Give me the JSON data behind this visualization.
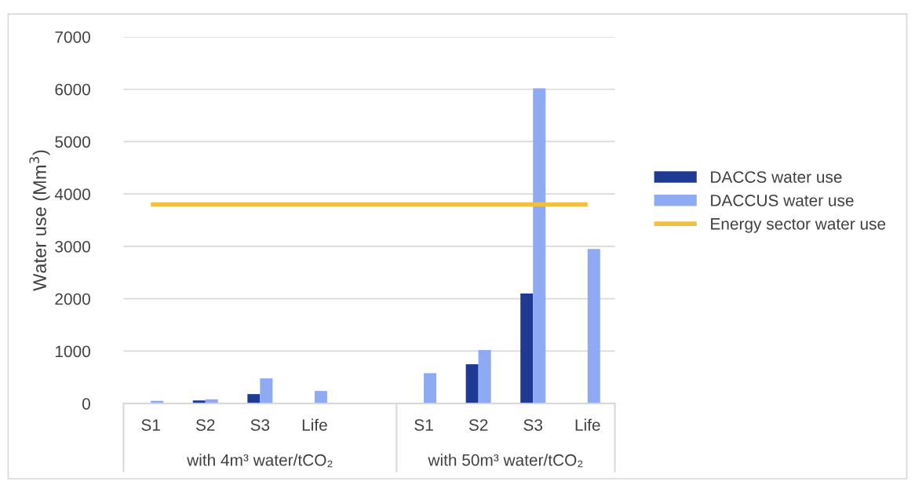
{
  "chart_data": {
    "type": "bar",
    "ylabel": "Water use (Mm$^{3}$)",
    "categories": [
      "S1",
      "S2",
      "S3",
      "Life",
      null,
      "S1",
      "S2",
      "S3",
      "Life"
    ],
    "series": [
      {
        "name": "DACCS water use",
        "color": "#1f3a93",
        "values": [
          0,
          60,
          180,
          0,
          null,
          0,
          750,
          2100,
          0
        ]
      },
      {
        "name": "DACCUS water use",
        "color": "#8eaaf2",
        "values": [
          50,
          80,
          480,
          240,
          null,
          580,
          1020,
          6020,
          2950
        ]
      },
      {
        "name": "Energy sector water use",
        "type": "line",
        "color": "#f0c040",
        "values": [
          3800,
          3800,
          3800,
          3800,
          3800,
          3800,
          3800,
          3800,
          3800
        ]
      }
    ],
    "annotations": [
      "with 4m³ water/tCO₂",
      "with 50m³ water/tCO₂"
    ],
    "ylim": [
      0,
      7000
    ],
    "yticks": [
      0,
      1000,
      2000,
      3000,
      4000,
      5000,
      6000,
      7000
    ],
    "grid": "y",
    "legend": "right"
  }
}
